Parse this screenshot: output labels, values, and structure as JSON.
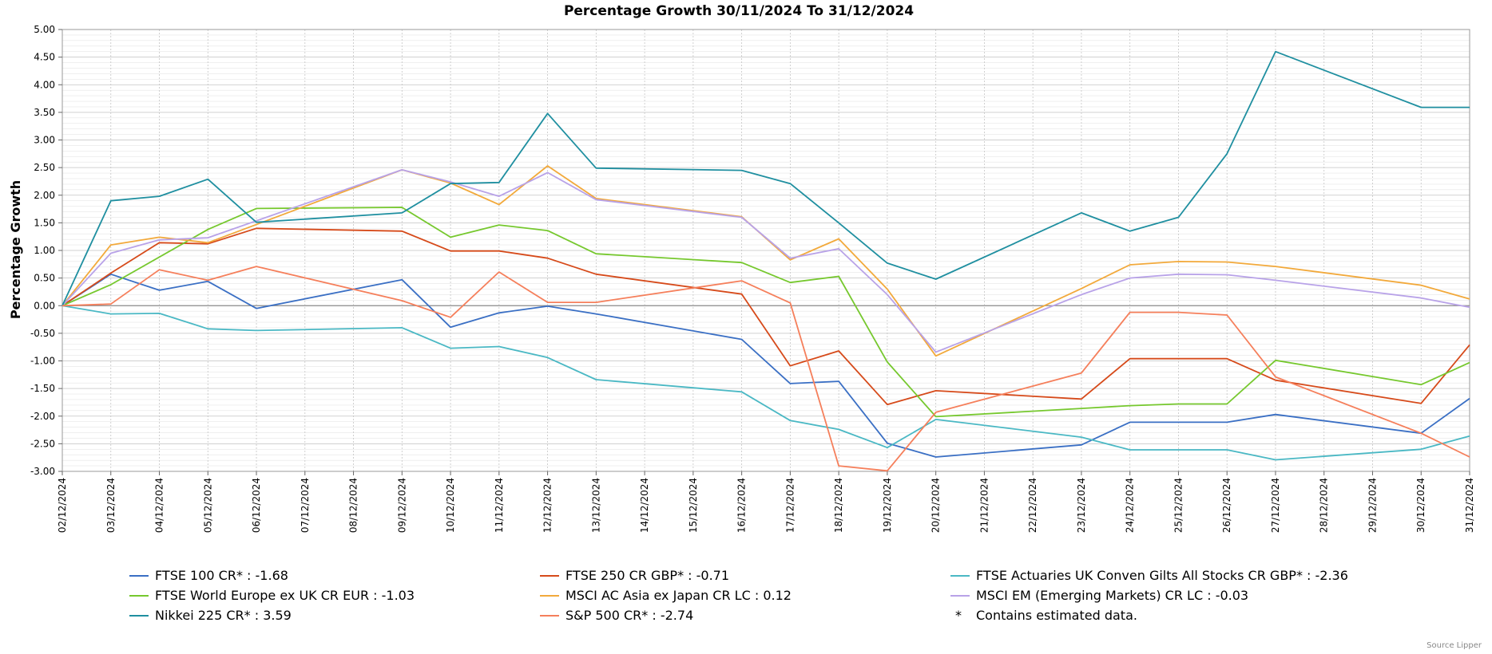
{
  "chart_data": {
    "type": "line",
    "title": "Percentage Growth 30/11/2024 To 31/12/2024",
    "ylabel": "Percentage Growth",
    "xlabel": "",
    "ylim": [
      -3.0,
      5.0
    ],
    "y_ticks": [
      "5.00",
      "4.50",
      "4.00",
      "3.50",
      "3.00",
      "2.50",
      "2.00",
      "1.50",
      "1.00",
      "0.50",
      "0.00",
      "-0.50",
      "-1.00",
      "-1.50",
      "-2.00",
      "-2.50",
      "-3.00"
    ],
    "y_tick_values": [
      5.0,
      4.5,
      4.0,
      3.5,
      3.0,
      2.5,
      2.0,
      1.5,
      1.0,
      0.5,
      0.0,
      -0.5,
      -1.0,
      -1.5,
      -2.0,
      -2.5,
      -3.0
    ],
    "x": [
      "02/12/2024",
      "03/12/2024",
      "04/12/2024",
      "05/12/2024",
      "06/12/2024",
      "07/12/2024",
      "08/12/2024",
      "09/12/2024",
      "10/12/2024",
      "11/12/2024",
      "12/12/2024",
      "13/12/2024",
      "14/12/2024",
      "15/12/2024",
      "16/12/2024",
      "17/12/2024",
      "18/12/2024",
      "19/12/2024",
      "20/12/2024",
      "21/12/2024",
      "22/12/2024",
      "23/12/2024",
      "24/12/2024",
      "25/12/2024",
      "26/12/2024",
      "27/12/2024",
      "28/12/2024",
      "29/12/2024",
      "30/12/2024",
      "31/12/2024"
    ],
    "grid": true,
    "series": [
      {
        "name": "FTSE 100 CR*",
        "final": "-1.68",
        "color": "#3a6fc4",
        "values": [
          0.0,
          0.57,
          0.28,
          0.44,
          -0.05,
          null,
          null,
          0.47,
          -0.39,
          -0.13,
          -0.01,
          -0.15,
          null,
          null,
          -0.61,
          -1.41,
          -1.37,
          -2.49,
          -2.74,
          null,
          null,
          -2.52,
          -2.11,
          -2.11,
          -2.11,
          -1.97,
          null,
          null,
          -2.31,
          -1.68
        ]
      },
      {
        "name": "FTSE 250 CR GBP*",
        "final": "-0.71",
        "color": "#d64a1a",
        "values": [
          0.0,
          0.59,
          1.14,
          1.12,
          1.4,
          null,
          null,
          1.35,
          0.99,
          0.99,
          0.86,
          0.57,
          null,
          null,
          0.21,
          -1.09,
          -0.82,
          -1.79,
          -1.54,
          null,
          null,
          -1.69,
          -0.96,
          -0.96,
          -0.96,
          -1.35,
          null,
          null,
          -1.77,
          -0.71
        ]
      },
      {
        "name": "FTSE Actuaries UK Conven Gilts All Stocks CR GBP*",
        "final": "-2.36",
        "color": "#4ab8c4",
        "values": [
          0.0,
          -0.15,
          -0.14,
          -0.42,
          -0.45,
          null,
          null,
          -0.4,
          -0.77,
          -0.74,
          -0.94,
          -1.34,
          null,
          null,
          -1.56,
          -2.08,
          -2.24,
          -2.57,
          -2.06,
          null,
          null,
          -2.38,
          -2.61,
          -2.61,
          -2.61,
          -2.79,
          null,
          null,
          -2.6,
          -2.36
        ]
      },
      {
        "name": "FTSE World Europe ex UK CR EUR",
        "final": "-1.03",
        "color": "#76c82e",
        "values": [
          0.0,
          0.38,
          null,
          1.38,
          1.76,
          null,
          null,
          1.78,
          1.24,
          1.46,
          1.36,
          0.94,
          null,
          null,
          0.78,
          0.42,
          0.53,
          -1.02,
          -2.01,
          null,
          null,
          -1.86,
          -1.81,
          -1.78,
          -1.78,
          -0.99,
          null,
          null,
          -1.43,
          -1.03
        ]
      },
      {
        "name": "MSCI AC Asia ex Japan CR LC",
        "final": "0.12",
        "color": "#f2a93b",
        "values": [
          0.0,
          1.1,
          1.24,
          1.14,
          null,
          null,
          null,
          2.46,
          2.22,
          1.83,
          2.53,
          1.94,
          null,
          null,
          1.61,
          0.83,
          1.21,
          0.3,
          -0.91,
          null,
          null,
          0.31,
          0.74,
          0.8,
          0.79,
          0.71,
          null,
          null,
          0.37,
          0.12
        ]
      },
      {
        "name": "MSCI EM (Emerging Markets) CR LC",
        "final": "-0.03",
        "color": "#b8a2e8",
        "values": [
          0.0,
          0.95,
          1.19,
          1.23,
          null,
          null,
          null,
          2.46,
          2.24,
          1.98,
          2.41,
          1.92,
          null,
          null,
          1.6,
          0.86,
          1.03,
          0.2,
          -0.84,
          null,
          null,
          0.2,
          0.5,
          0.57,
          0.56,
          0.46,
          null,
          null,
          0.14,
          -0.03
        ]
      },
      {
        "name": "Nikkei 225 CR*",
        "final": "3.59",
        "color": "#1f8fa0",
        "values": [
          0.0,
          1.9,
          1.98,
          2.29,
          1.51,
          null,
          null,
          1.68,
          2.21,
          2.23,
          3.48,
          2.49,
          null,
          null,
          2.45,
          2.21,
          1.5,
          0.77,
          0.48,
          null,
          null,
          1.68,
          1.35,
          1.6,
          2.75,
          4.6,
          null,
          null,
          3.59,
          3.59
        ]
      },
      {
        "name": "S&P 500 CR*",
        "final": "-2.74",
        "color": "#f57f5b",
        "values": [
          0.0,
          0.03,
          0.65,
          0.46,
          0.71,
          null,
          null,
          0.09,
          -0.21,
          0.61,
          0.06,
          0.06,
          null,
          null,
          0.45,
          0.05,
          -2.9,
          -2.99,
          -1.93,
          null,
          null,
          -1.22,
          -0.12,
          -0.12,
          -0.17,
          -1.29,
          null,
          null,
          -2.31,
          -2.74
        ]
      }
    ],
    "note": "Contains estimated data.",
    "note_marker": "*",
    "source": "Source Lipper"
  }
}
